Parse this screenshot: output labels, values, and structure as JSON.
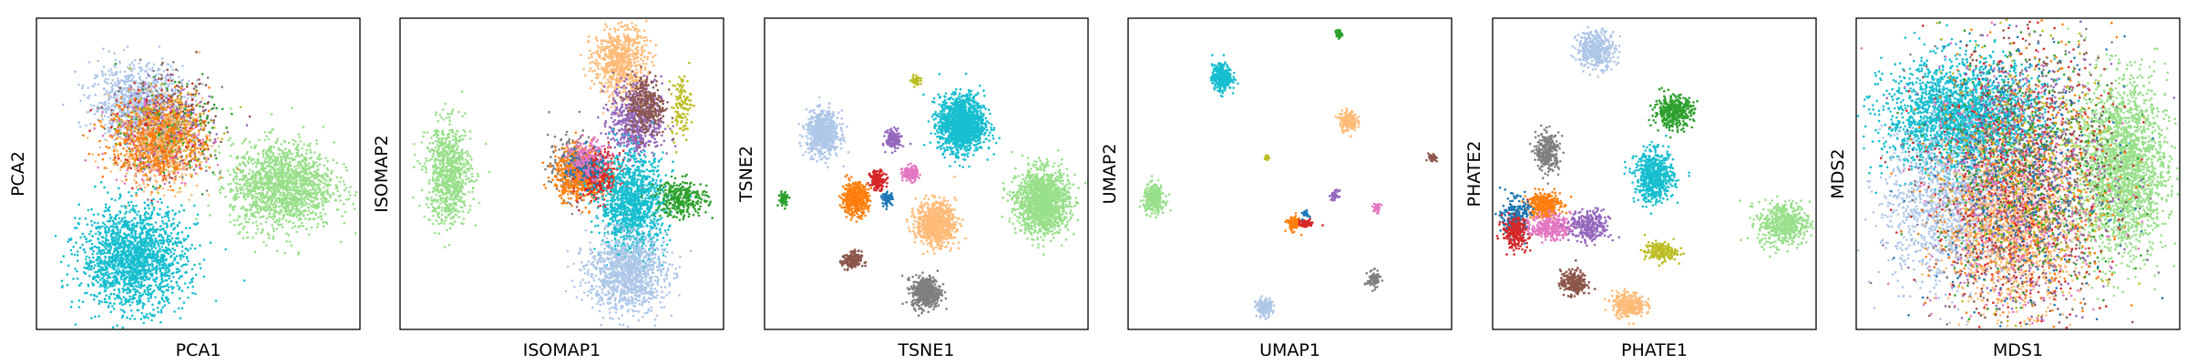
{
  "palette": {
    "blue": "#1f77b4",
    "light_blue": "#aec7e8",
    "orange": "#ff7f0e",
    "light_orange": "#ffbb78",
    "green": "#2ca02c",
    "light_green": "#98df8a",
    "red": "#d62728",
    "purple": "#9467bd",
    "pink": "#e377c2",
    "gray": "#7f7f7f",
    "olive": "#bcbd22",
    "cyan": "#17becf",
    "brown": "#8c564b"
  },
  "chart_data": [
    {
      "type": "scatter",
      "title": "",
      "xlabel": "PCA1",
      "ylabel": "PCA2",
      "xlim": [
        0,
        100
      ],
      "ylim": [
        0,
        100
      ],
      "grid": false,
      "ticks": false,
      "clusters": [
        {
          "color": "light_blue",
          "cx": 31,
          "cy": 73,
          "sx": 7,
          "sy": 6,
          "n": 900
        },
        {
          "color": "gray",
          "cx": 40,
          "cy": 64,
          "sx": 7,
          "sy": 8,
          "n": 250
        },
        {
          "color": "brown",
          "cx": 41,
          "cy": 66,
          "sx": 7,
          "sy": 7,
          "n": 200
        },
        {
          "color": "purple",
          "cx": 40,
          "cy": 65,
          "sx": 7,
          "sy": 7,
          "n": 200
        },
        {
          "color": "red",
          "cx": 38,
          "cy": 62,
          "sx": 7,
          "sy": 7,
          "n": 200
        },
        {
          "color": "pink",
          "cx": 37,
          "cy": 61,
          "sx": 7,
          "sy": 7,
          "n": 200
        },
        {
          "color": "olive",
          "cx": 40,
          "cy": 63,
          "sx": 7,
          "sy": 7,
          "n": 200
        },
        {
          "color": "green",
          "cx": 41,
          "cy": 63,
          "sx": 7,
          "sy": 7,
          "n": 150
        },
        {
          "color": "light_orange",
          "cx": 37,
          "cy": 59,
          "sx": 7,
          "sy": 7,
          "n": 450
        },
        {
          "color": "orange",
          "cx": 38,
          "cy": 61,
          "sx": 8,
          "sy": 7,
          "n": 450
        },
        {
          "color": "light_green",
          "cx": 76,
          "cy": 46,
          "sx": 8,
          "sy": 7,
          "n": 1500
        },
        {
          "color": "cyan",
          "cx": 30,
          "cy": 23,
          "sx": 8,
          "sy": 8,
          "n": 1800
        }
      ]
    },
    {
      "type": "scatter",
      "title": "",
      "xlabel": "ISOMAP1",
      "ylabel": "ISOMAP2",
      "xlim": [
        0,
        100
      ],
      "ylim": [
        0,
        100
      ],
      "grid": false,
      "ticks": false,
      "clusters": [
        {
          "color": "light_green",
          "cx": 15,
          "cy": 50,
          "sx": 3.5,
          "sy": 8,
          "n": 800
        },
        {
          "color": "light_orange",
          "cx": 68,
          "cy": 86,
          "sx": 4,
          "sy": 6,
          "n": 700
        },
        {
          "color": "purple",
          "cx": 73,
          "cy": 67,
          "sx": 4,
          "sy": 6,
          "n": 600
        },
        {
          "color": "brown",
          "cx": 76,
          "cy": 72,
          "sx": 3,
          "sy": 5,
          "n": 300
        },
        {
          "color": "olive",
          "cx": 87,
          "cy": 72,
          "sx": 1.5,
          "sy": 5,
          "n": 120
        },
        {
          "color": "gray",
          "cx": 54,
          "cy": 52,
          "sx": 4,
          "sy": 5,
          "n": 300
        },
        {
          "color": "orange",
          "cx": 56,
          "cy": 50,
          "sx": 4,
          "sy": 4,
          "n": 700
        },
        {
          "color": "red",
          "cx": 62,
          "cy": 49,
          "sx": 3,
          "sy": 4,
          "n": 300
        },
        {
          "color": "blue",
          "cx": 57,
          "cy": 52,
          "sx": 3,
          "sy": 3,
          "n": 150
        },
        {
          "color": "pink",
          "cx": 58,
          "cy": 55,
          "sx": 3,
          "sy": 3,
          "n": 150
        },
        {
          "color": "cyan",
          "cx": 72,
          "cy": 40,
          "sx": 5,
          "sy": 8,
          "n": 1200
        },
        {
          "color": "green",
          "cx": 87,
          "cy": 42,
          "sx": 4,
          "sy": 3,
          "n": 300
        },
        {
          "color": "light_blue",
          "cx": 70,
          "cy": 18,
          "sx": 6,
          "sy": 6,
          "n": 1100
        }
      ]
    },
    {
      "type": "scatter",
      "title": "",
      "xlabel": "TSNE1",
      "ylabel": "TSNE2",
      "xlim": [
        0,
        100
      ],
      "ylim": [
        0,
        100
      ],
      "grid": false,
      "ticks": false,
      "clusters": [
        {
          "color": "olive",
          "cx": 47,
          "cy": 80,
          "sx": 0.8,
          "sy": 0.8,
          "n": 40
        },
        {
          "color": "cyan",
          "cx": 61,
          "cy": 66,
          "sx": 3.5,
          "sy": 4.5,
          "n": 1500
        },
        {
          "color": "light_blue",
          "cx": 18,
          "cy": 63,
          "sx": 2.5,
          "sy": 3.5,
          "n": 700
        },
        {
          "color": "purple",
          "cx": 40,
          "cy": 61,
          "sx": 1.2,
          "sy": 1.5,
          "n": 150
        },
        {
          "color": "pink",
          "cx": 45,
          "cy": 50,
          "sx": 1.2,
          "sy": 1.2,
          "n": 150
        },
        {
          "color": "red",
          "cx": 35,
          "cy": 48,
          "sx": 1.2,
          "sy": 1.5,
          "n": 150
        },
        {
          "color": "orange",
          "cx": 28,
          "cy": 42,
          "sx": 2,
          "sy": 2.5,
          "n": 500
        },
        {
          "color": "blue",
          "cx": 38,
          "cy": 42,
          "sx": 0.8,
          "sy": 1,
          "n": 80
        },
        {
          "color": "green",
          "cx": 6,
          "cy": 42,
          "sx": 0.8,
          "sy": 1.2,
          "n": 60
        },
        {
          "color": "light_green",
          "cx": 86,
          "cy": 41,
          "sx": 4,
          "sy": 5,
          "n": 1500
        },
        {
          "color": "light_orange",
          "cx": 53,
          "cy": 34,
          "sx": 3,
          "sy": 3.5,
          "n": 800
        },
        {
          "color": "brown",
          "cx": 27,
          "cy": 22,
          "sx": 1.5,
          "sy": 1.5,
          "n": 150
        },
        {
          "color": "gray",
          "cx": 50,
          "cy": 12,
          "sx": 2.2,
          "sy": 2.5,
          "n": 500
        }
      ]
    },
    {
      "type": "scatter",
      "title": "",
      "xlabel": "UMAP1",
      "ylabel": "UMAP2",
      "xlim": [
        0,
        100
      ],
      "ylim": [
        0,
        100
      ],
      "grid": false,
      "ticks": false,
      "clusters": [
        {
          "color": "green",
          "cx": 65,
          "cy": 95,
          "sx": 0.5,
          "sy": 0.7,
          "n": 40
        },
        {
          "color": "cyan",
          "cx": 29,
          "cy": 81,
          "sx": 1.5,
          "sy": 2,
          "n": 400
        },
        {
          "color": "light_orange",
          "cx": 68,
          "cy": 67,
          "sx": 1.3,
          "sy": 1.6,
          "n": 200
        },
        {
          "color": "brown",
          "cx": 94,
          "cy": 55,
          "sx": 0.6,
          "sy": 0.7,
          "n": 40
        },
        {
          "color": "olive",
          "cx": 43,
          "cy": 55,
          "sx": 0.4,
          "sy": 0.5,
          "n": 20
        },
        {
          "color": "light_green",
          "cx": 8,
          "cy": 42,
          "sx": 1.6,
          "sy": 2.2,
          "n": 300
        },
        {
          "color": "purple",
          "cx": 64,
          "cy": 43,
          "sx": 0.6,
          "sy": 0.8,
          "n": 40
        },
        {
          "color": "pink",
          "cx": 77,
          "cy": 39,
          "sx": 0.6,
          "sy": 0.7,
          "n": 40
        },
        {
          "color": "orange",
          "cx": 51,
          "cy": 34,
          "sx": 1,
          "sy": 1.2,
          "n": 100
        },
        {
          "color": "red",
          "cx": 55,
          "cy": 34,
          "sx": 1.2,
          "sy": 0.6,
          "n": 60
        },
        {
          "color": "blue",
          "cx": 55,
          "cy": 37,
          "sx": 0.5,
          "sy": 0.6,
          "n": 25
        },
        {
          "color": "gray",
          "cx": 76,
          "cy": 16,
          "sx": 1,
          "sy": 1.3,
          "n": 100
        },
        {
          "color": "light_blue",
          "cx": 42,
          "cy": 7,
          "sx": 1.2,
          "sy": 1.5,
          "n": 150
        }
      ]
    },
    {
      "type": "scatter",
      "title": "",
      "xlabel": "PHATE1",
      "ylabel": "PHATE2",
      "xlim": [
        0,
        100
      ],
      "ylim": [
        0,
        100
      ],
      "grid": false,
      "ticks": false,
      "clusters": [
        {
          "color": "light_blue",
          "cx": 32,
          "cy": 90,
          "sx": 3,
          "sy": 3,
          "n": 400
        },
        {
          "color": "green",
          "cx": 56,
          "cy": 70,
          "sx": 3,
          "sy": 2.5,
          "n": 400
        },
        {
          "color": "gray",
          "cx": 17,
          "cy": 57,
          "sx": 1.8,
          "sy": 3,
          "n": 300
        },
        {
          "color": "cyan",
          "cx": 50,
          "cy": 49,
          "sx": 3,
          "sy": 4,
          "n": 600
        },
        {
          "color": "orange",
          "cx": 16,
          "cy": 40,
          "sx": 2.5,
          "sy": 2.2,
          "n": 350
        },
        {
          "color": "blue",
          "cx": 7,
          "cy": 36,
          "sx": 2,
          "sy": 3,
          "n": 250
        },
        {
          "color": "red",
          "cx": 7,
          "cy": 31,
          "sx": 2,
          "sy": 2.5,
          "n": 250
        },
        {
          "color": "pink",
          "cx": 18,
          "cy": 33,
          "sx": 3,
          "sy": 2,
          "n": 300
        },
        {
          "color": "purple",
          "cx": 30,
          "cy": 33,
          "sx": 3,
          "sy": 2.5,
          "n": 300
        },
        {
          "color": "light_green",
          "cx": 90,
          "cy": 34,
          "sx": 4,
          "sy": 3.5,
          "n": 500
        },
        {
          "color": "olive",
          "cx": 52,
          "cy": 25,
          "sx": 2.5,
          "sy": 1.5,
          "n": 200
        },
        {
          "color": "brown",
          "cx": 25,
          "cy": 15,
          "sx": 2,
          "sy": 2,
          "n": 250
        },
        {
          "color": "light_orange",
          "cx": 42,
          "cy": 8,
          "sx": 2.5,
          "sy": 2,
          "n": 300
        }
      ]
    },
    {
      "type": "scatter",
      "title": "",
      "xlabel": "MDS1",
      "ylabel": "MDS2",
      "xlim": [
        0,
        100
      ],
      "ylim": [
        0,
        100
      ],
      "grid": false,
      "ticks": false,
      "clusters": [
        {
          "color": "cyan",
          "cx": 33,
          "cy": 68,
          "sx": 12,
          "sy": 9,
          "n": 2400
        },
        {
          "color": "light_green",
          "cx": 82,
          "cy": 52,
          "sx": 7,
          "sy": 14,
          "n": 2200
        },
        {
          "color": "light_blue",
          "cx": 28,
          "cy": 39,
          "sx": 10,
          "sy": 12,
          "n": 1200
        },
        {
          "color": "light_orange",
          "cx": 48,
          "cy": 33,
          "sx": 10,
          "sy": 13,
          "n": 1300
        },
        {
          "color": "brown",
          "cx": 52,
          "cy": 48,
          "sx": 14,
          "sy": 22,
          "n": 500
        },
        {
          "color": "purple",
          "cx": 52,
          "cy": 48,
          "sx": 14,
          "sy": 22,
          "n": 500
        },
        {
          "color": "red",
          "cx": 50,
          "cy": 47,
          "sx": 14,
          "sy": 22,
          "n": 500
        },
        {
          "color": "orange",
          "cx": 52,
          "cy": 46,
          "sx": 14,
          "sy": 22,
          "n": 500
        },
        {
          "color": "gray",
          "cx": 51,
          "cy": 48,
          "sx": 14,
          "sy": 22,
          "n": 400
        },
        {
          "color": "pink",
          "cx": 49,
          "cy": 44,
          "sx": 14,
          "sy": 22,
          "n": 400
        },
        {
          "color": "olive",
          "cx": 54,
          "cy": 52,
          "sx": 14,
          "sy": 22,
          "n": 350
        },
        {
          "color": "green",
          "cx": 54,
          "cy": 50,
          "sx": 14,
          "sy": 22,
          "n": 350
        },
        {
          "color": "blue",
          "cx": 50,
          "cy": 48,
          "sx": 14,
          "sy": 22,
          "n": 350
        }
      ]
    }
  ]
}
